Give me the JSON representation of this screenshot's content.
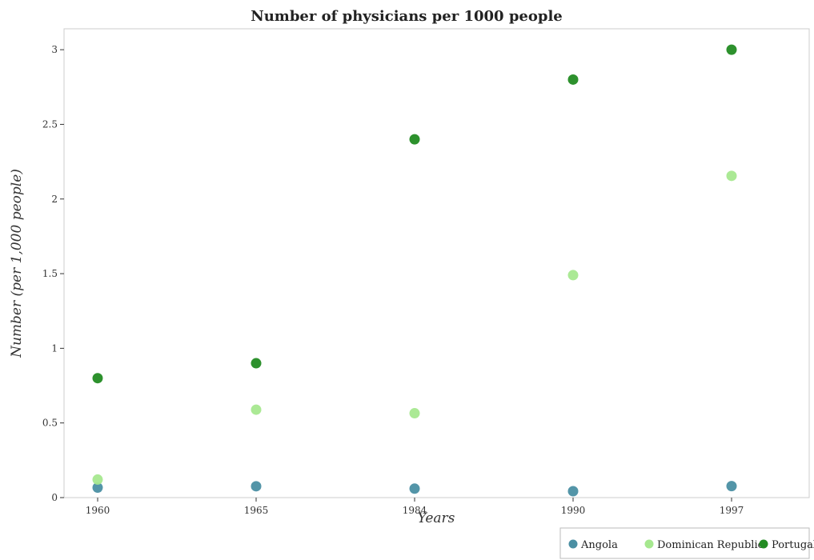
{
  "chart_data": {
    "type": "scatter",
    "title": "Number of physicians per 1000 people",
    "xlabel": "Years",
    "ylabel": "Number (per 1,000 people)",
    "categories": [
      "1960",
      "1965",
      "1984",
      "1990",
      "1997"
    ],
    "ylim": [
      0,
      3.14
    ],
    "yticks": [
      0,
      0.5,
      1,
      1.5,
      2,
      2.5,
      3
    ],
    "ytick_labels": [
      "0",
      "0.5",
      "1",
      "1.5",
      "2",
      "2.5",
      "3"
    ],
    "grid": false,
    "legend_position": "bottom-right",
    "series": [
      {
        "name": "Angola",
        "color": "#4a8fa3",
        "values": [
          0.067,
          0.076,
          0.06,
          0.043,
          0.077
        ]
      },
      {
        "name": "Dominican Republic",
        "color": "#a6e88f",
        "values": [
          0.121,
          0.589,
          0.565,
          1.49,
          2.155
        ]
      },
      {
        "name": "Portugal",
        "color": "#228b22",
        "values": [
          0.8,
          0.9,
          2.4,
          2.8,
          3.0
        ]
      }
    ]
  }
}
